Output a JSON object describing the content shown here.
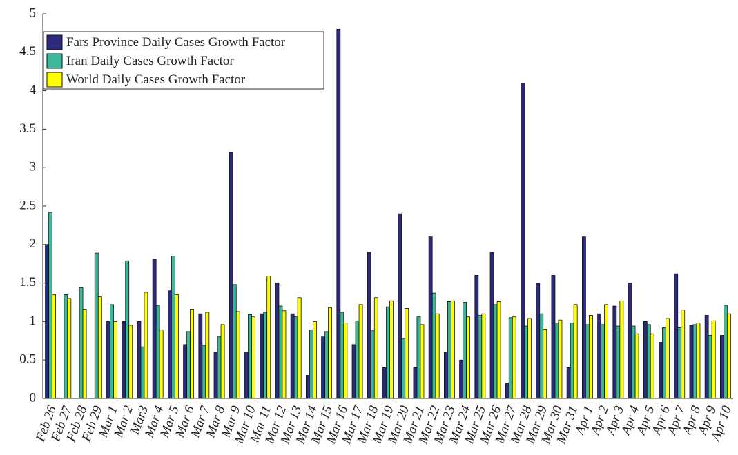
{
  "chart_data": {
    "type": "bar",
    "categories": [
      "Feb 26",
      "Feb 27",
      "Feb 28",
      "Feb 29",
      "Mar 1",
      "Mar 2",
      "Mar3",
      "Mar 4",
      "Mar 5",
      "Mar 6",
      "Mar 7",
      "Mar 8",
      "Mar 9",
      "Mar 10",
      "Mar 11",
      "Mar 12",
      "Mar 13",
      "Mar 14",
      "Mar 15",
      "Mar 16",
      "Mar 17",
      "Mar 18",
      "Mar 19",
      "Mar 20",
      "Mar 21",
      "Mar 22",
      "Mar 23",
      "Mar 24",
      "Mar 25",
      "Mar 26",
      "Mar 27",
      "Mar 28",
      "Mar 29",
      "Mar 30",
      "Mar 31",
      "Apr 1",
      "Apr 2",
      "Apr 3",
      "Apr 4",
      "Apr 5",
      "Apr 6",
      "Apr 7",
      "Apr 8",
      "Apr 9",
      "Apr 10"
    ],
    "series": [
      {
        "name": "Fars Province Daily Cases Growth Factor",
        "color": "#2d2a7c",
        "values": [
          2.0,
          0,
          0,
          0,
          1.0,
          1.0,
          1.0,
          1.81,
          1.4,
          0.7,
          1.1,
          0.6,
          3.2,
          0.6,
          1.1,
          1.5,
          1.1,
          0.3,
          0.8,
          4.8,
          0.7,
          1.9,
          0.4,
          2.4,
          0.4,
          2.1,
          0.6,
          0.5,
          1.6,
          1.9,
          0.2,
          4.1,
          1.5,
          1.6,
          0.4,
          2.1,
          1.1,
          1.2,
          1.5,
          1.0,
          0.73,
          1.62,
          0.95,
          1.08,
          0.82
        ]
      },
      {
        "name": "Iran Daily Cases Growth Factor",
        "color": "#3bb89a",
        "values": [
          2.42,
          1.35,
          1.44,
          1.89,
          1.22,
          1.79,
          0.67,
          1.21,
          1.85,
          0.87,
          0.69,
          0.8,
          1.48,
          1.09,
          1.12,
          1.2,
          1.06,
          0.89,
          0.87,
          1.12,
          1.01,
          0.88,
          1.19,
          0.78,
          1.06,
          1.37,
          1.26,
          1.25,
          1.08,
          1.22,
          1.05,
          0.94,
          1.1,
          0.98,
          0.98,
          0.96,
          0.96,
          0.94,
          0.94,
          0.96,
          0.92,
          0.92,
          0.96,
          0.82,
          1.21
        ]
      },
      {
        "name": "World Daily Cases Growth Factor",
        "color": "#ffff00",
        "values": [
          1.35,
          1.3,
          1.16,
          1.32,
          1.0,
          0.95,
          1.38,
          0.89,
          1.35,
          1.16,
          1.12,
          0.96,
          1.13,
          1.06,
          1.59,
          1.14,
          1.31,
          1.0,
          1.18,
          0.98,
          1.22,
          1.31,
          1.27,
          1.17,
          0.96,
          1.1,
          1.27,
          1.06,
          1.1,
          1.26,
          1.06,
          1.04,
          0.9,
          1.02,
          1.22,
          1.08,
          1.22,
          1.27,
          0.84,
          0.84,
          1.04,
          1.15,
          0.98,
          1.01,
          1.1
        ]
      }
    ],
    "ylim": [
      0,
      5
    ],
    "yticks": [
      0,
      0.5,
      1,
      1.5,
      2,
      2.5,
      3,
      3.5,
      4,
      4.5,
      5
    ],
    "legend": "upper-left"
  }
}
